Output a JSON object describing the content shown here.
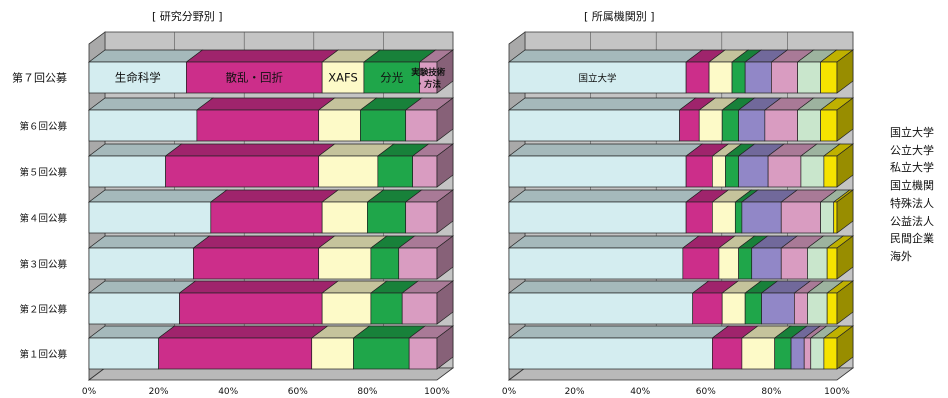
{
  "chart_data": [
    {
      "type": "bar",
      "title": "[ 研究分野別 ]",
      "categories": [
        "第７回公募",
        "第６回公募",
        "第５回公募",
        "第４回公募",
        "第３回公募",
        "第２回公募",
        "第１回公募"
      ],
      "series": [
        {
          "name": "生命科学",
          "color": "#d4edf0",
          "values": [
            28,
            31,
            22,
            35,
            30,
            26,
            20
          ]
        },
        {
          "name": "散乱・回折",
          "color": "#cc2e8a",
          "values": [
            39,
            35,
            44,
            32,
            36,
            41,
            44
          ]
        },
        {
          "name": "XAFS",
          "color": "#fdfac8",
          "values": [
            12,
            12,
            17,
            13,
            15,
            14,
            12
          ]
        },
        {
          "name": "分光",
          "color": "#1fa64a",
          "values": [
            16,
            13,
            10,
            11,
            8,
            9,
            16
          ]
        },
        {
          "name": "実験技術・方法",
          "color": "#d99cc1",
          "values": [
            5,
            9,
            7,
            9,
            11,
            10,
            8
          ]
        }
      ],
      "inline_labels": [
        "生命科学",
        "散乱・回折",
        "XAFS",
        "分光",
        "実験技術・方法"
      ],
      "xlim": [
        0,
        100
      ],
      "xticks": [
        "0%",
        "20%",
        "40%",
        "60%",
        "80%",
        "100%"
      ],
      "xlabel": "",
      "ylabel": ""
    },
    {
      "type": "bar",
      "title": "[ 所属機関別 ]",
      "categories": [
        "第７回公募",
        "第６回公募",
        "第５回公募",
        "第４回公募",
        "第３回公募",
        "第２回公募",
        "第１回公募"
      ],
      "series": [
        {
          "name": "国立大学",
          "color": "#d4edf0",
          "values": [
            54,
            52,
            54,
            54,
            53,
            56,
            62
          ]
        },
        {
          "name": "公立大学",
          "color": "#cc2e8a",
          "values": [
            7,
            6,
            8,
            8,
            11,
            9,
            9
          ]
        },
        {
          "name": "私立大学",
          "color": "#fdfac8",
          "values": [
            7,
            7,
            4,
            7,
            6,
            7,
            10
          ]
        },
        {
          "name": "国立機関",
          "color": "#1fa64a",
          "values": [
            4,
            5,
            4,
            2,
            4,
            5,
            5
          ]
        },
        {
          "name": "特殊法人",
          "color": "#9187c7",
          "values": [
            8,
            8,
            9,
            12,
            9,
            10,
            4
          ]
        },
        {
          "name": "公益法人",
          "color": "#d99cc1",
          "values": [
            8,
            10,
            10,
            12,
            8,
            4,
            2
          ]
        },
        {
          "name": "民間企業",
          "color": "#c9e6cc",
          "values": [
            7,
            7,
            7,
            4,
            6,
            6,
            4
          ]
        },
        {
          "name": "海外",
          "color": "#f5e300",
          "values": [
            5,
            5,
            4,
            1,
            3,
            3,
            4
          ]
        }
      ],
      "inline_labels": [
        "国立大学"
      ],
      "xlim": [
        0,
        100
      ],
      "xticks": [
        "0%",
        "20%",
        "40%",
        "60%",
        "80%",
        "100%"
      ],
      "xlabel": "",
      "ylabel": ""
    }
  ],
  "legend": [
    "国立大学",
    "公立大学",
    "私立大学",
    "国立機関",
    "特殊法人",
    "公益法人",
    "民間企業",
    "海外"
  ]
}
